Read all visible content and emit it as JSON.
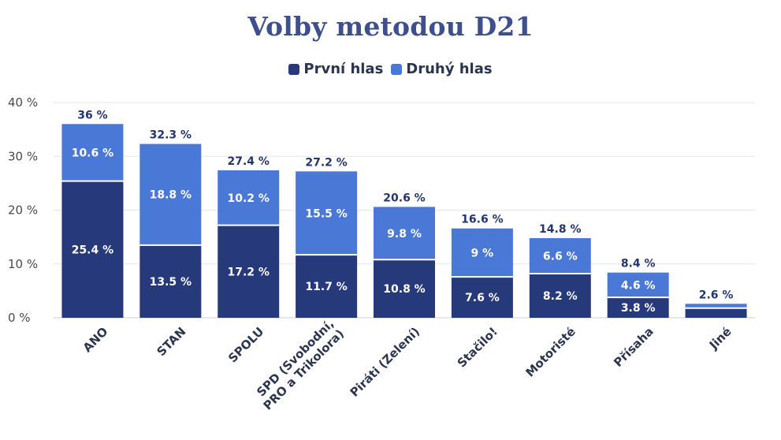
{
  "chart_data": {
    "type": "bar",
    "stacked": true,
    "title": "Volby metodou D21",
    "categories": [
      "ANO",
      "STAN",
      "SPOLU",
      "SPD (Svobodní, PRO a Trikolora)",
      "Piráti (Zelení)",
      "Stačilo!",
      "Motoristé",
      "Přísaha",
      "Jiné"
    ],
    "category_lines": [
      [
        "ANO"
      ],
      [
        "STAN"
      ],
      [
        "SPOLU"
      ],
      [
        "SPD (Svobodní,",
        "PRO a Trikolora)"
      ],
      [
        "Piráti (Zelení)"
      ],
      [
        "Stačilo!"
      ],
      [
        "Motoristé"
      ],
      [
        "Přísaha"
      ],
      [
        "Jiné"
      ]
    ],
    "series": [
      {
        "name": "První hlas",
        "color": "#26397a",
        "values": [
          25.4,
          13.5,
          17.2,
          11.7,
          10.8,
          7.6,
          8.2,
          3.8,
          1.8
        ],
        "labels": [
          "25.4 %",
          "13.5 %",
          "17.2 %",
          "11.7 %",
          "10.8 %",
          "7.6 %",
          "8.2 %",
          "3.8 %",
          ""
        ]
      },
      {
        "name": "Druhý hlas",
        "color": "#4a78d6",
        "values": [
          10.6,
          18.8,
          10.2,
          15.5,
          9.8,
          9,
          6.6,
          4.6,
          0.8
        ],
        "labels": [
          "10.6 %",
          "18.8 %",
          "10.2 %",
          "15.5 %",
          "9.8 %",
          "9 %",
          "6.6 %",
          "4.6 %",
          ""
        ]
      }
    ],
    "totals": [
      36,
      32.3,
      27.4,
      27.2,
      20.6,
      16.6,
      14.8,
      8.4,
      2.6
    ],
    "total_labels": [
      "36 %",
      "32.3 %",
      "27.4 %",
      "27.2 %",
      "20.6 %",
      "16.6 %",
      "14.8 %",
      "8.4 %",
      "2.6 %"
    ],
    "ylim": [
      0,
      40
    ],
    "yticks": [
      0,
      10,
      20,
      30,
      40
    ],
    "ytick_labels": [
      "0 %",
      "10 %",
      "20 %",
      "30 %",
      "40 %"
    ],
    "grid": true,
    "legend_position": "top"
  }
}
